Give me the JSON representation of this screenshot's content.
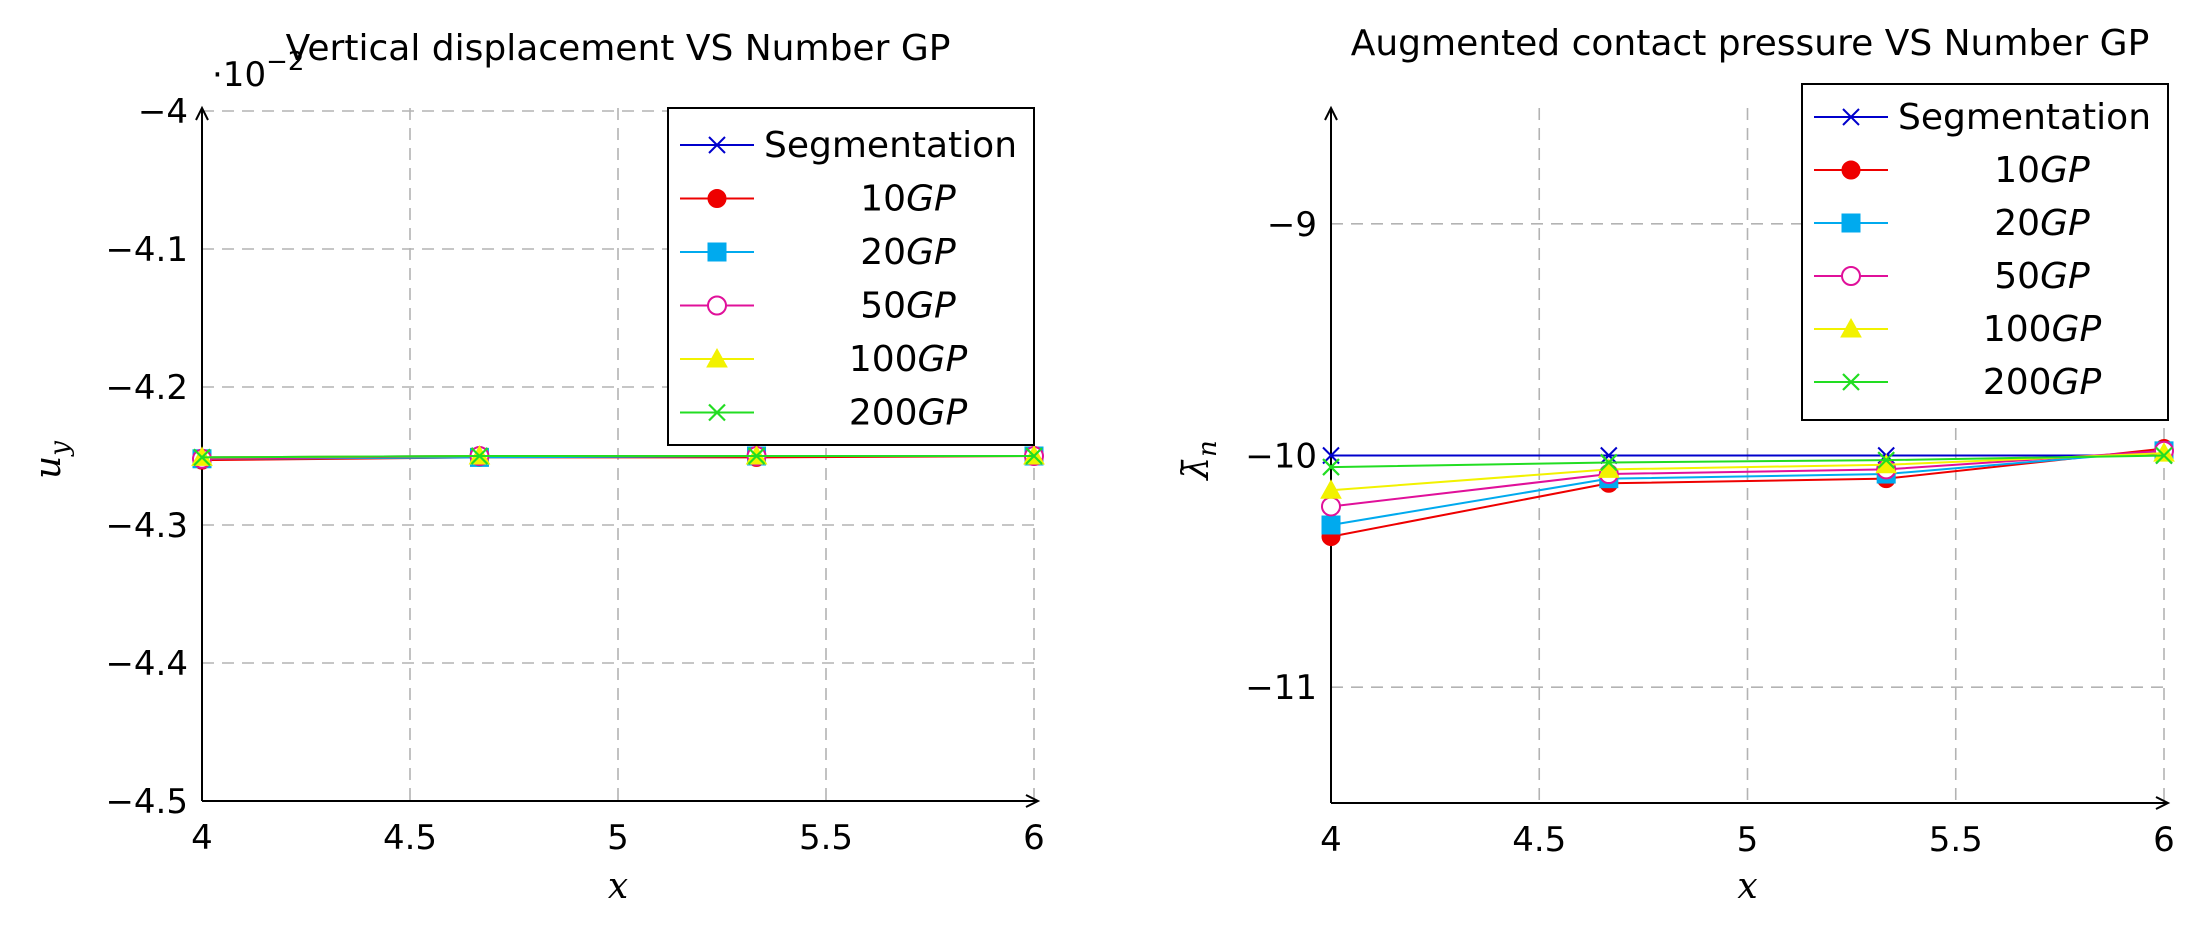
{
  "chart_data": [
    {
      "type": "line",
      "title": "Vertical displacement VS Number GP",
      "xlabel": "x",
      "ylabel": "u",
      "ylabel_sub": "y",
      "scale_label": "·10",
      "scale_exp": "−2",
      "xlim": [
        4,
        6
      ],
      "ylim": [
        -4.5,
        -4.0
      ],
      "xticks": [
        "4",
        "4.5",
        "5",
        "5.5",
        "6"
      ],
      "xtick_values": [
        4,
        4.5,
        5,
        5.5,
        6
      ],
      "yticks": [
        "−4",
        "−4.1",
        "−4.2",
        "−4.3",
        "−4.4",
        "−4.5"
      ],
      "ytick_values": [
        -4.0,
        -4.1,
        -4.2,
        -4.3,
        -4.4,
        -4.5
      ],
      "grid": true,
      "legend_position": "top-right",
      "x": [
        4,
        4.667,
        5.333,
        6
      ],
      "series": [
        {
          "name": "Segmentation",
          "values": [
            -4.251,
            -4.25,
            -4.25,
            -4.25
          ]
        },
        {
          "name": "10",
          "values": [
            -4.253,
            -4.251,
            -4.251,
            -4.25
          ]
        },
        {
          "name": "20",
          "values": [
            -4.252,
            -4.251,
            -4.25,
            -4.25
          ]
        },
        {
          "name": "50",
          "values": [
            -4.252,
            -4.25,
            -4.25,
            -4.25
          ]
        },
        {
          "name": "100",
          "values": [
            -4.251,
            -4.25,
            -4.25,
            -4.25
          ]
        },
        {
          "name": "200",
          "values": [
            -4.251,
            -4.25,
            -4.25,
            -4.25
          ]
        }
      ]
    },
    {
      "type": "line",
      "title": "Augmented contact pressure VS Number GP",
      "xlabel": "x",
      "ylabel": "λ̄",
      "ylabel_sub": "n",
      "xlim": [
        4,
        6
      ],
      "ylim": [
        -11.5,
        -8.5
      ],
      "xticks": [
        "4",
        "4.5",
        "5",
        "5.5",
        "6"
      ],
      "xtick_values": [
        4,
        4.5,
        5,
        5.5,
        6
      ],
      "yticks": [
        "−9",
        "−10",
        "−11"
      ],
      "ytick_values": [
        -9,
        -10,
        -11
      ],
      "grid": true,
      "legend_position": "top-right",
      "x": [
        4,
        4.667,
        5.333,
        6
      ],
      "series": [
        {
          "name": "Segmentation",
          "values": [
            -10.0,
            -10.0,
            -10.0,
            -10.0
          ]
        },
        {
          "name": "10",
          "values": [
            -10.35,
            -10.12,
            -10.1,
            -9.97
          ]
        },
        {
          "name": "20",
          "values": [
            -10.3,
            -10.1,
            -10.08,
            -9.98
          ]
        },
        {
          "name": "50",
          "values": [
            -10.22,
            -10.08,
            -10.06,
            -9.98
          ]
        },
        {
          "name": "100",
          "values": [
            -10.15,
            -10.06,
            -10.04,
            -9.99
          ]
        },
        {
          "name": "200",
          "values": [
            -10.05,
            -10.03,
            -10.02,
            -10.0
          ]
        }
      ]
    }
  ],
  "legend_suffix": "GP",
  "colors": [
    "#0000cc",
    "#ee0000",
    "#00aaee",
    "#e0109a",
    "#f2f200",
    "#22dd22"
  ],
  "markers": [
    "cross-icon",
    "filled-circle-icon",
    "filled-square-icon",
    "open-circle-icon",
    "filled-triangle-icon",
    "x-icon"
  ]
}
